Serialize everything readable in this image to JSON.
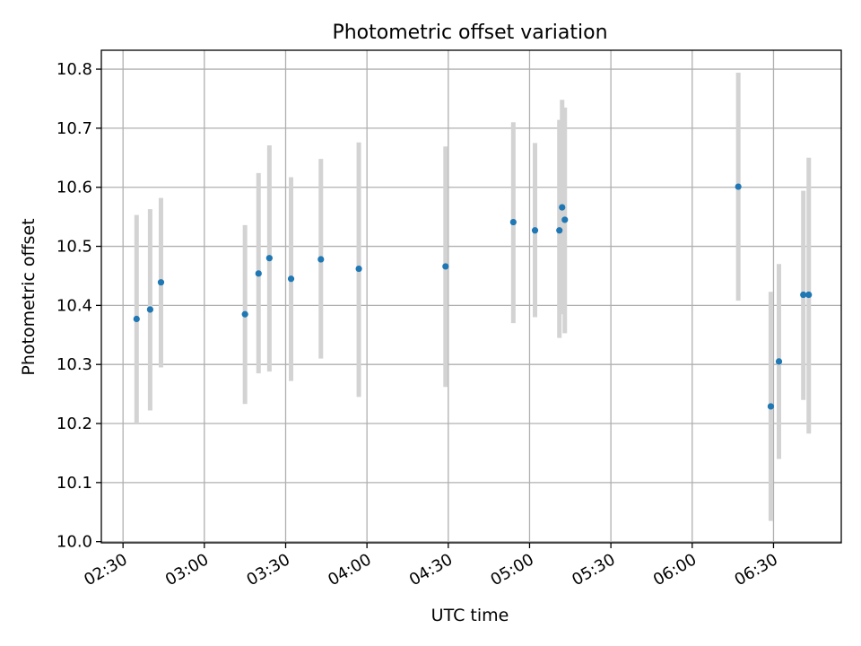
{
  "chart_data": {
    "type": "scatter",
    "title": "Photometric offset variation",
    "xlabel": "UTC time",
    "ylabel": "Photometric offset",
    "x_axis": "time",
    "xlim": [
      "02:22",
      "06:55"
    ],
    "ylim": [
      9.998,
      10.832
    ],
    "x_ticks": [
      "02:30",
      "03:00",
      "03:30",
      "04:00",
      "04:30",
      "05:00",
      "05:30",
      "06:00",
      "06:30"
    ],
    "y_ticks": [
      10.0,
      10.1,
      10.2,
      10.3,
      10.4,
      10.5,
      10.6,
      10.7,
      10.8
    ],
    "grid": true,
    "errorbar_color": "#d3d3d3",
    "point_color": "#1f77b4",
    "points": [
      {
        "x": "02:35",
        "y": 10.377,
        "err_low": 10.2,
        "err_high": 10.553
      },
      {
        "x": "02:40",
        "y": 10.393,
        "err_low": 10.222,
        "err_high": 10.563
      },
      {
        "x": "02:44",
        "y": 10.439,
        "err_low": 10.295,
        "err_high": 10.582
      },
      {
        "x": "03:15",
        "y": 10.385,
        "err_low": 10.233,
        "err_high": 10.536
      },
      {
        "x": "03:20",
        "y": 10.454,
        "err_low": 10.285,
        "err_high": 10.624
      },
      {
        "x": "03:24",
        "y": 10.48,
        "err_low": 10.288,
        "err_high": 10.671
      },
      {
        "x": "03:32",
        "y": 10.445,
        "err_low": 10.272,
        "err_high": 10.617
      },
      {
        "x": "03:43",
        "y": 10.478,
        "err_low": 10.31,
        "err_high": 10.648
      },
      {
        "x": "03:57",
        "y": 10.462,
        "err_low": 10.245,
        "err_high": 10.676
      },
      {
        "x": "04:29",
        "y": 10.466,
        "err_low": 10.262,
        "err_high": 10.669
      },
      {
        "x": "04:54",
        "y": 10.541,
        "err_low": 10.37,
        "err_high": 10.71
      },
      {
        "x": "05:02",
        "y": 10.527,
        "err_low": 10.38,
        "err_high": 10.675
      },
      {
        "x": "05:11",
        "y": 10.527,
        "err_low": 10.345,
        "err_high": 10.714
      },
      {
        "x": "05:12",
        "y": 10.566,
        "err_low": 10.385,
        "err_high": 10.748
      },
      {
        "x": "05:13",
        "y": 10.545,
        "err_low": 10.353,
        "err_high": 10.735
      },
      {
        "x": "06:17",
        "y": 10.601,
        "err_low": 10.408,
        "err_high": 10.794
      },
      {
        "x": "06:29",
        "y": 10.229,
        "err_low": 10.035,
        "err_high": 10.423
      },
      {
        "x": "06:32",
        "y": 10.305,
        "err_low": 10.14,
        "err_high": 10.47
      },
      {
        "x": "06:41",
        "y": 10.418,
        "err_low": 10.24,
        "err_high": 10.594
      },
      {
        "x": "06:43",
        "y": 10.418,
        "err_low": 10.183,
        "err_high": 10.65
      }
    ]
  }
}
